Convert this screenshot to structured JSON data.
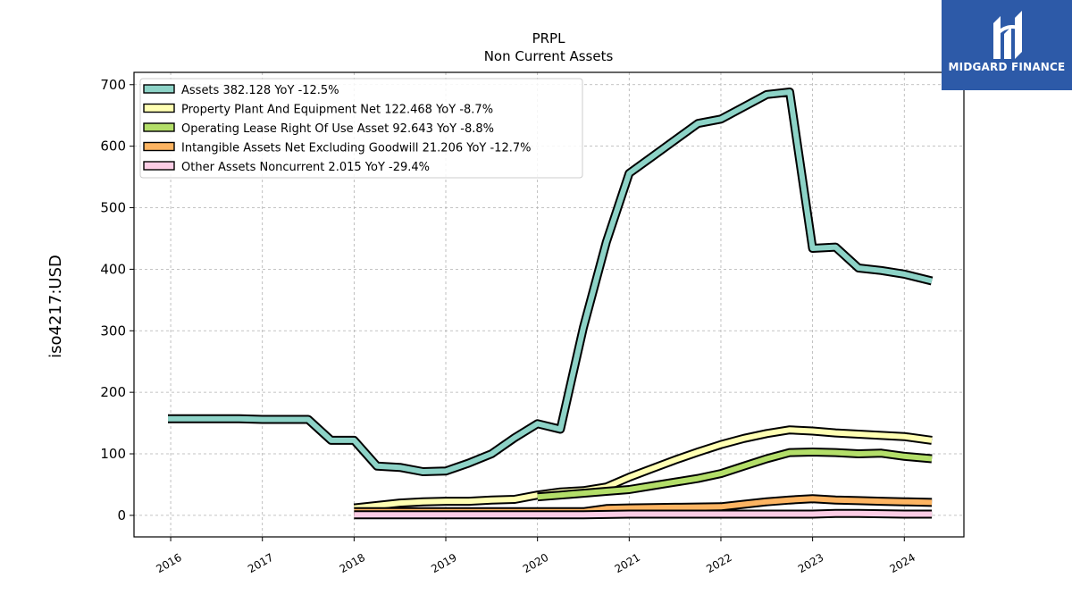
{
  "brand": {
    "name": "MIDGARD FINANCE",
    "color": "#2d5aa8"
  },
  "chart_data": {
    "type": "line",
    "title": "PRPL",
    "subtitle": "Non Current  Assets",
    "ylabel": "iso4217:USD",
    "xlabel": "",
    "xlim": [
      2015.6,
      2024.65
    ],
    "ylim": [
      -35,
      720
    ],
    "yticks": [
      0,
      100,
      200,
      300,
      400,
      500,
      600,
      700
    ],
    "xticks": [
      2016,
      2017,
      2018,
      2019,
      2020,
      2021,
      2022,
      2023,
      2024
    ],
    "xtick_labels": [
      "2016",
      "2017",
      "2018",
      "2019",
      "2020",
      "2021",
      "2022",
      "2023",
      "2024"
    ],
    "grid": true,
    "legend_position": "top-left",
    "series": [
      {
        "name": "Assets",
        "legend": "Assets  382.128 YoY -12.5%",
        "color": "#8dd3c7",
        "x": [
          2015.97,
          2016.25,
          2016.5,
          2016.75,
          2017.0,
          2017.25,
          2017.5,
          2017.75,
          2018.0,
          2018.25,
          2018.5,
          2018.75,
          2019.0,
          2019.25,
          2019.5,
          2019.75,
          2020.0,
          2020.25,
          2020.5,
          2020.75,
          2021.0,
          2021.25,
          2021.5,
          2021.75,
          2022.0,
          2022.25,
          2022.5,
          2022.75,
          2023.0,
          2023.25,
          2023.5,
          2023.75,
          2024.0,
          2024.3
        ],
        "y": [
          157,
          157,
          157,
          157,
          156,
          156,
          156,
          122,
          122,
          80,
          78,
          71,
          72,
          85,
          100,
          126,
          149,
          140,
          305,
          444,
          556,
          583,
          610,
          637,
          644,
          664,
          684,
          688,
          434,
          436,
          402,
          398,
          392,
          381
        ]
      },
      {
        "name": "Property Plant And Equipment Net",
        "legend": "Property Plant And Equipment Net  122.468 YoY -8.7%",
        "color": "#ffffb3",
        "x": [
          2018.0,
          2018.25,
          2018.5,
          2018.75,
          2019.0,
          2019.25,
          2019.5,
          2019.75,
          2020.0,
          2020.25,
          2020.5,
          2020.75,
          2021.0,
          2021.25,
          2021.5,
          2021.75,
          2022.0,
          2022.25,
          2022.5,
          2022.75,
          2023.0,
          2023.25,
          2023.5,
          2023.75,
          2024.0,
          2024.3
        ],
        "y": [
          12,
          16,
          20,
          22,
          23,
          23,
          25,
          26,
          33,
          38,
          40,
          46,
          62,
          76,
          90,
          103,
          115,
          125,
          133,
          139,
          137,
          134,
          132,
          130,
          128,
          122
        ]
      },
      {
        "name": "Operating Lease Right Of Use Asset",
        "legend": "Operating Lease Right Of Use Asset  92.643 YoY -8.8%",
        "color": "#b3de69",
        "x": [
          2020.0,
          2020.25,
          2020.5,
          2020.75,
          2021.0,
          2021.25,
          2021.5,
          2021.75,
          2022.0,
          2022.25,
          2022.5,
          2022.75,
          2023.0,
          2023.25,
          2023.5,
          2023.75,
          2024.0,
          2024.3
        ],
        "y": [
          30,
          33,
          36,
          39,
          42,
          48,
          54,
          60,
          68,
          80,
          92,
          102,
          103,
          102,
          100,
          101,
          96,
          92
        ]
      },
      {
        "name": "Intangible Assets Net Excluding Goodwill",
        "legend": "Intangible Assets Net Excluding Goodwill  21.206 YoY -12.7%",
        "color": "#fdb462",
        "x": [
          2018.0,
          2018.5,
          2019.0,
          2019.5,
          2020.0,
          2020.5,
          2020.75,
          2021.0,
          2021.5,
          2022.0,
          2022.25,
          2022.5,
          2022.75,
          2023.0,
          2023.25,
          2023.5,
          2023.75,
          2024.0,
          2024.3
        ],
        "y": [
          6,
          6,
          6,
          6,
          6,
          6,
          11,
          12,
          13,
          14,
          18,
          22,
          25,
          27,
          25,
          24,
          23,
          22,
          21
        ]
      },
      {
        "name": "Other Assets Noncurrent",
        "legend": "Other Assets Noncurrent  2.015 YoY -29.4%",
        "color": "#fccde5",
        "x": [
          2018.0,
          2018.5,
          2019.0,
          2019.5,
          2020.0,
          2020.5,
          2021.0,
          2021.5,
          2022.0,
          2022.5,
          2023.0,
          2023.25,
          2023.5,
          2024.0,
          2024.3
        ],
        "y": [
          1,
          1,
          1,
          1,
          1,
          1,
          2,
          2,
          2,
          2,
          2,
          3,
          3,
          2,
          2
        ]
      }
    ]
  }
}
